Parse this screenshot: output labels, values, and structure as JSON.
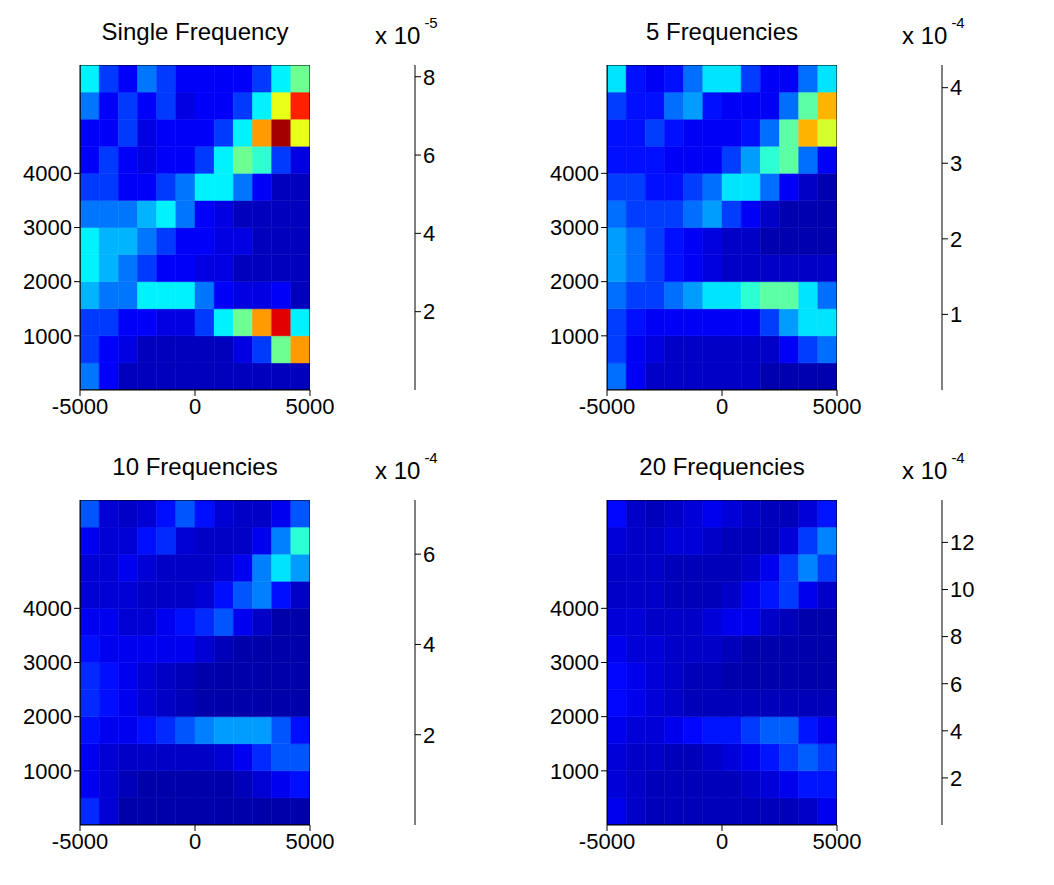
{
  "chart_data": [
    {
      "type": "heatmap",
      "title": "Single Frequency",
      "xlim": [
        -5000,
        5000
      ],
      "xticks": [
        -5000,
        0,
        5000
      ],
      "ylim": [
        0,
        6000
      ],
      "yticks": [
        1000,
        2000,
        3000,
        4000
      ],
      "tick_labels": true,
      "grid": false,
      "x_bins": [
        -5000,
        -4167,
        -3333,
        -2500,
        -1667,
        -833,
        0,
        833,
        1667,
        2500,
        3333,
        4167,
        5000
      ],
      "y_bins": [
        0,
        500,
        1000,
        1500,
        2000,
        2500,
        3000,
        3500,
        4000,
        4500,
        5000,
        5500,
        6000
      ],
      "cells": [
        [
          2,
          1,
          0.5,
          0.5,
          0.5,
          0.5,
          0.5,
          0.5,
          0.5,
          0.5,
          0.5,
          0.5
        ],
        [
          1.5,
          1,
          0.8,
          0.5,
          0.5,
          0.5,
          0.5,
          0.5,
          0.8,
          1.5,
          4,
          6
        ],
        [
          1.5,
          1.5,
          1,
          1,
          0.8,
          0.8,
          1.5,
          3,
          4,
          6,
          7.5,
          3
        ],
        [
          2.5,
          2,
          2,
          3,
          3,
          3,
          2,
          1,
          0.8,
          0.8,
          1,
          0.5
        ],
        [
          3,
          2.5,
          2,
          1.5,
          1,
          1,
          0.8,
          0.8,
          0.5,
          0.5,
          0.5,
          0.5
        ],
        [
          3,
          2.5,
          2.5,
          2,
          1.5,
          1,
          1,
          0.8,
          0.8,
          0.5,
          0.5,
          0.5
        ],
        [
          2,
          2,
          2,
          2.5,
          3,
          2,
          1,
          0.8,
          0.5,
          0.5,
          0.5,
          0.5
        ],
        [
          1.5,
          1.5,
          1,
          1,
          1.5,
          2,
          3,
          3,
          2,
          1,
          0.5,
          0.5
        ],
        [
          1,
          1.5,
          1,
          0.8,
          1,
          1,
          1.5,
          3,
          4,
          3.5,
          1.5,
          0.8
        ],
        [
          1,
          1,
          1.5,
          0.8,
          1,
          1,
          1,
          1.5,
          3,
          6,
          8,
          5
        ],
        [
          2,
          1,
          1.5,
          1,
          1.5,
          0.8,
          1,
          1,
          1.5,
          3,
          5,
          7
        ],
        [
          3,
          1.5,
          1,
          2,
          1.5,
          1,
          1,
          1,
          1,
          1.5,
          3,
          4
        ]
      ],
      "colorbar": {
        "range": [
          0,
          8.3
        ],
        "ticks": [
          2,
          4,
          6,
          8
        ],
        "multiplier": "x 10",
        "exponent": "-5"
      }
    },
    {
      "type": "heatmap",
      "title": "5 Frequencies",
      "xlim": [
        -5000,
        5000
      ],
      "xticks": [
        -5000,
        0,
        5000
      ],
      "ylim": [
        0,
        6000
      ],
      "yticks": [
        1000,
        2000,
        3000,
        4000
      ],
      "tick_labels": true,
      "grid": false,
      "x_bins": [
        -5000,
        -4167,
        -3333,
        -2500,
        -1667,
        -833,
        0,
        833,
        1667,
        2500,
        3333,
        4167,
        5000
      ],
      "y_bins": [
        0,
        500,
        1000,
        1500,
        2000,
        2500,
        3000,
        3500,
        4000,
        4500,
        5000,
        5500,
        6000
      ],
      "cells": [
        [
          1,
          0.5,
          0.3,
          0.3,
          0.3,
          0.3,
          0.3,
          0.3,
          0.2,
          0.2,
          0.2,
          0.2
        ],
        [
          0.8,
          0.5,
          0.4,
          0.3,
          0.3,
          0.3,
          0.3,
          0.3,
          0.3,
          0.5,
          0.8,
          1
        ],
        [
          0.8,
          0.6,
          0.5,
          0.5,
          0.5,
          0.5,
          0.5,
          0.5,
          0.8,
          1.2,
          1.5,
          1.5
        ],
        [
          1,
          0.8,
          0.8,
          1,
          1.2,
          1.5,
          1.5,
          1.8,
          2,
          2,
          1.5,
          1
        ],
        [
          1.2,
          1,
          0.8,
          0.6,
          0.5,
          0.4,
          0.3,
          0.3,
          0.3,
          0.3,
          0.3,
          0.3
        ],
        [
          1.2,
          1,
          0.8,
          0.6,
          0.5,
          0.4,
          0.3,
          0.3,
          0.2,
          0.2,
          0.2,
          0.2
        ],
        [
          1,
          0.8,
          0.8,
          0.8,
          1,
          1.2,
          0.8,
          0.5,
          0.3,
          0.2,
          0.2,
          0.2
        ],
        [
          0.8,
          0.8,
          0.6,
          0.6,
          0.8,
          1,
          1.5,
          1.5,
          1,
          0.5,
          0.3,
          0.2
        ],
        [
          0.6,
          0.6,
          0.6,
          0.5,
          0.5,
          0.5,
          0.8,
          1.2,
          1.8,
          2,
          1,
          0.5
        ],
        [
          0.6,
          0.6,
          0.8,
          0.6,
          0.5,
          0.5,
          0.5,
          0.6,
          1,
          2,
          3,
          2.5
        ],
        [
          0.8,
          0.6,
          0.6,
          1,
          1.2,
          0.6,
          0.5,
          0.5,
          0.5,
          1,
          2,
          3
        ],
        [
          1.5,
          0.6,
          0.5,
          0.6,
          1,
          1.5,
          1.5,
          0.8,
          0.5,
          0.5,
          1,
          1.5
        ]
      ],
      "colorbar": {
        "range": [
          0,
          4.3
        ],
        "ticks": [
          1,
          2,
          3,
          4
        ],
        "multiplier": "x 10",
        "exponent": "-4"
      }
    },
    {
      "type": "heatmap",
      "title": "10 Frequencies",
      "xlim": [
        -5000,
        5000
      ],
      "xticks": [
        -5000,
        0,
        5000
      ],
      "ylim": [
        0,
        6000
      ],
      "yticks": [
        1000,
        2000,
        3000,
        4000
      ],
      "tick_labels": true,
      "grid": false,
      "x_bins": [
        -5000,
        -4167,
        -3333,
        -2500,
        -1667,
        -833,
        0,
        833,
        1667,
        2500,
        3333,
        4167,
        5000
      ],
      "y_bins": [
        0,
        500,
        1000,
        1500,
        2000,
        2500,
        3000,
        3500,
        4000,
        4500,
        5000,
        5500,
        6000
      ],
      "cells": [
        [
          1.2,
          0.6,
          0.3,
          0.3,
          0.3,
          0.3,
          0.3,
          0.3,
          0.3,
          0.3,
          0.3,
          0.3
        ],
        [
          0.8,
          0.6,
          0.4,
          0.3,
          0.3,
          0.3,
          0.3,
          0.3,
          0.4,
          0.6,
          0.8,
          1
        ],
        [
          0.8,
          0.6,
          0.5,
          0.5,
          0.5,
          0.5,
          0.5,
          0.6,
          0.8,
          1.2,
          1.5,
          1.5
        ],
        [
          1,
          0.8,
          0.8,
          1,
          1.2,
          1.5,
          1.8,
          2,
          2,
          2,
          1.5,
          1
        ],
        [
          1.2,
          1,
          0.8,
          0.6,
          0.5,
          0.4,
          0.3,
          0.3,
          0.3,
          0.3,
          0.3,
          0.3
        ],
        [
          1.2,
          1,
          0.8,
          0.6,
          0.5,
          0.4,
          0.3,
          0.3,
          0.3,
          0.3,
          0.3,
          0.3
        ],
        [
          1,
          0.8,
          0.8,
          0.8,
          0.8,
          0.8,
          0.6,
          0.4,
          0.3,
          0.3,
          0.3,
          0.3
        ],
        [
          0.8,
          0.8,
          0.6,
          0.6,
          0.8,
          1,
          1.2,
          1.5,
          0.8,
          0.5,
          0.3,
          0.3
        ],
        [
          0.6,
          0.6,
          0.6,
          0.5,
          0.5,
          0.5,
          0.6,
          1,
          1.5,
          1.8,
          1,
          0.5
        ],
        [
          0.6,
          0.6,
          0.8,
          0.6,
          0.5,
          0.5,
          0.5,
          0.6,
          0.8,
          1.8,
          2.5,
          2
        ],
        [
          0.8,
          0.6,
          0.6,
          1,
          1.2,
          0.6,
          0.5,
          0.5,
          0.5,
          0.8,
          1.8,
          3
        ],
        [
          1.5,
          0.6,
          0.5,
          0.6,
          1,
          1.5,
          1,
          0.6,
          0.5,
          0.5,
          0.8,
          1.5
        ]
      ],
      "colorbar": {
        "range": [
          0,
          7.2
        ],
        "ticks": [
          2,
          4,
          6
        ],
        "multiplier": "x 10",
        "exponent": "-4"
      }
    },
    {
      "type": "heatmap",
      "title": "20 Frequencies",
      "xlim": [
        -5000,
        5000
      ],
      "xticks": [
        -5000,
        0,
        5000
      ],
      "ylim": [
        0,
        6000
      ],
      "yticks": [
        1000,
        2000,
        3000,
        4000
      ],
      "tick_labels": true,
      "grid": false,
      "x_bins": [
        -5000,
        -4167,
        -3333,
        -2500,
        -1667,
        -833,
        0,
        833,
        1667,
        2500,
        3333,
        4167,
        5000
      ],
      "y_bins": [
        0,
        500,
        1000,
        1500,
        2000,
        2500,
        3000,
        3500,
        4000,
        4500,
        5000,
        5500,
        6000
      ],
      "cells": [
        [
          1.5,
          1,
          0.8,
          0.8,
          0.8,
          0.8,
          0.8,
          0.8,
          0.8,
          0.8,
          1,
          1.5
        ],
        [
          1.2,
          1,
          0.8,
          0.8,
          0.8,
          0.8,
          0.8,
          1,
          1.2,
          1.5,
          2,
          2
        ],
        [
          1.2,
          1,
          1,
          0.8,
          0.8,
          1,
          1.2,
          1.5,
          2,
          2.5,
          3,
          2.5
        ],
        [
          1.5,
          1.2,
          1.2,
          1.5,
          1.8,
          2,
          2,
          2.5,
          3,
          3,
          2,
          1.5
        ],
        [
          1.8,
          1.5,
          1.2,
          1,
          0.8,
          0.8,
          0.8,
          0.8,
          0.8,
          0.8,
          0.8,
          0.8
        ],
        [
          1.8,
          1.5,
          1.2,
          1,
          0.8,
          0.8,
          0.6,
          0.6,
          0.6,
          0.6,
          0.6,
          0.6
        ],
        [
          1.5,
          1.2,
          1.2,
          1,
          1,
          1,
          0.8,
          0.6,
          0.6,
          0.6,
          0.6,
          0.6
        ],
        [
          1.2,
          1.2,
          1,
          1,
          1,
          1.2,
          1.5,
          1.5,
          1,
          0.8,
          0.6,
          0.6
        ],
        [
          1,
          1,
          1,
          0.8,
          0.8,
          0.8,
          1,
          1.5,
          2,
          2.5,
          1.5,
          1
        ],
        [
          1,
          1,
          1,
          0.8,
          0.8,
          0.8,
          0.8,
          1,
          1.5,
          2.5,
          3.5,
          2.5
        ],
        [
          1.2,
          1,
          1,
          1.2,
          1.2,
          1,
          0.8,
          0.8,
          0.8,
          1.2,
          2.5,
          3.5
        ],
        [
          1.8,
          1,
          0.8,
          1,
          1.2,
          1.5,
          1.2,
          1,
          0.8,
          0.8,
          1.2,
          2
        ]
      ],
      "colorbar": {
        "range": [
          0,
          13.8
        ],
        "ticks": [
          2,
          4,
          6,
          8,
          10,
          12
        ],
        "multiplier": "x 10",
        "exponent": "-4"
      }
    }
  ]
}
